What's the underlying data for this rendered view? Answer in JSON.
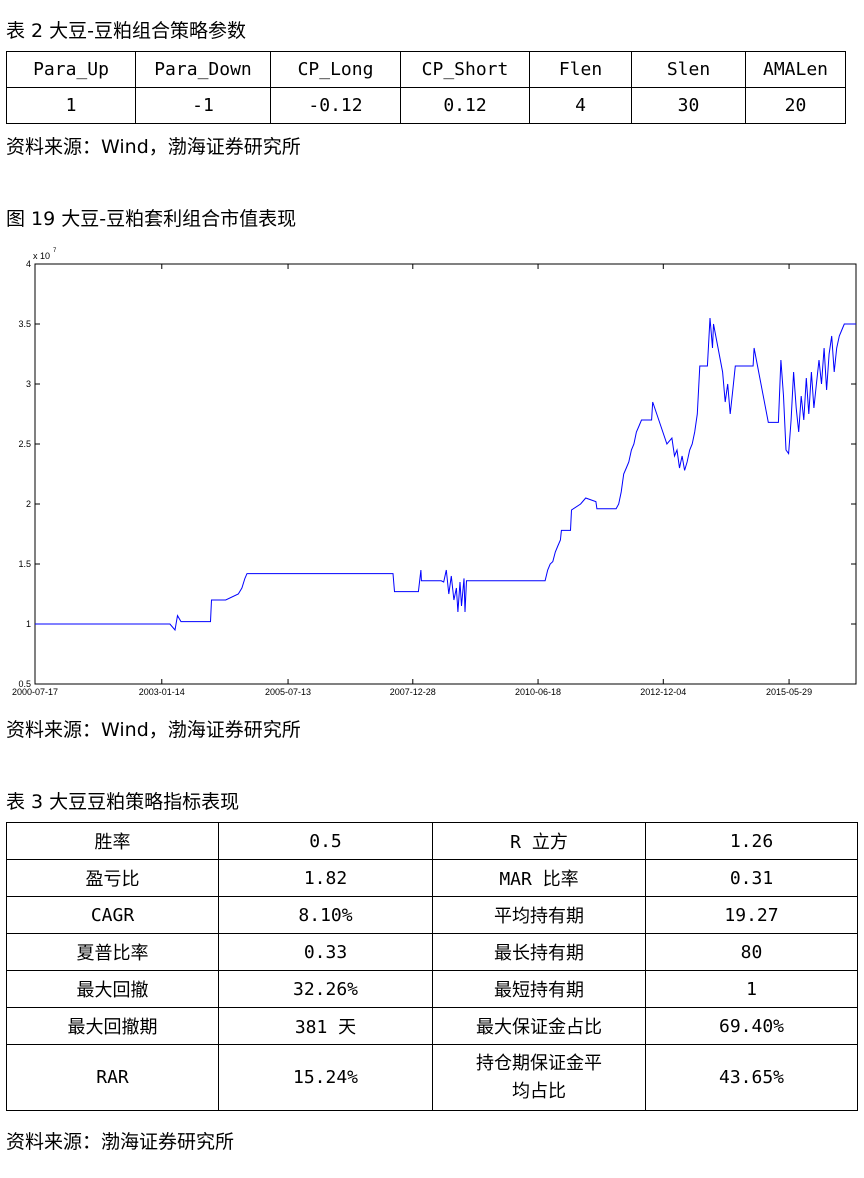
{
  "table2": {
    "caption": "表 2 大豆-豆粕组合策略参数",
    "headers": [
      "Para_Up",
      "Para_Down",
      "CP_Long",
      "CP_Short",
      "Flen",
      "Slen",
      "AMALen"
    ],
    "values": [
      "1",
      "-1",
      "-0.12",
      "0.12",
      "4",
      "30",
      "20"
    ],
    "source": "资料来源：Wind，渤海证券研究所"
  },
  "figure19": {
    "caption": "图 19 大豆-豆粕套利组合市值表现",
    "source": "资料来源：Wind，渤海证券研究所"
  },
  "chart_data": {
    "type": "line",
    "title": "",
    "xlabel": "",
    "ylabel": "",
    "y_scale_label": "x 10",
    "y_scale_exponent": "7",
    "ylim": [
      0.5,
      4
    ],
    "y_ticks": [
      "0.5",
      "1",
      "1.5",
      "2",
      "2.5",
      "3",
      "3.5",
      "4"
    ],
    "x_ticks": [
      "2000-07-17",
      "2003-01-14",
      "2005-07-13",
      "2007-12-28",
      "2010-06-18",
      "2012-12-04",
      "2015-05-29"
    ],
    "x_tick_years": [
      2000.54,
      2003.04,
      2005.53,
      2007.99,
      2010.46,
      2012.93,
      2015.41
    ],
    "xlim": [
      2000.54,
      2016.73
    ],
    "grid": false,
    "line_color": "#0000ff",
    "series": [
      {
        "x": [
          2000.54,
          2002.0,
          2003.2,
          2003.3,
          2003.35,
          2003.42,
          2003.5,
          2004.0,
          2004.02,
          2004.3,
          2004.55,
          2004.62,
          2004.68,
          2004.72,
          2007.0,
          2007.6,
          2007.63,
          2008.1,
          2008.15,
          2008.16,
          2008.3,
          2008.55,
          2008.6,
          2008.65,
          2008.7,
          2008.75,
          2008.8,
          2008.85,
          2008.88,
          2008.92,
          2008.95,
          2009.0,
          2009.02,
          2009.05,
          2009.1,
          2009.15,
          2009.2,
          2009.25,
          2009.3,
          2009.35,
          2009.36,
          2010.6,
          2010.65,
          2010.7,
          2010.75,
          2010.8,
          2010.85,
          2010.9,
          2010.92,
          2011.1,
          2011.12,
          2011.3,
          2011.4,
          2011.6,
          2011.62,
          2011.65,
          2011.7,
          2011.8,
          2012.0,
          2012.05,
          2012.1,
          2012.15,
          2012.2,
          2012.25,
          2012.3,
          2012.35,
          2012.4,
          2012.45,
          2012.5,
          2012.55,
          2012.6,
          2012.65,
          2012.7,
          2012.72,
          2013.0,
          2013.1,
          2013.15,
          2013.2,
          2013.25,
          2013.3,
          2013.35,
          2013.4,
          2013.45,
          2013.5,
          2013.55,
          2013.6,
          2013.65,
          2013.7,
          2013.75,
          2013.8,
          2013.85,
          2013.9,
          2013.92,
          2014.1,
          2014.15,
          2014.2,
          2014.25,
          2014.3,
          2014.35,
          2014.4,
          2014.45,
          2014.5,
          2014.55,
          2014.6,
          2014.65,
          2014.7,
          2014.72,
          2015.0,
          2015.02,
          2015.03,
          2015.2,
          2015.25,
          2015.3,
          2015.35,
          2015.4,
          2015.45,
          2015.5,
          2015.55,
          2015.6,
          2015.65,
          2015.7,
          2015.75,
          2015.8,
          2015.85,
          2015.9,
          2015.95,
          2016.0,
          2016.05,
          2016.1,
          2016.15,
          2016.2,
          2016.25,
          2016.3,
          2016.35,
          2016.4,
          2016.45,
          2016.5,
          2016.55,
          2016.6,
          2016.73
        ],
        "y": [
          1.0,
          1.0,
          1.0,
          0.95,
          1.07,
          1.02,
          1.02,
          1.02,
          1.2,
          1.2,
          1.25,
          1.3,
          1.38,
          1.42,
          1.42,
          1.42,
          1.27,
          1.27,
          1.45,
          1.36,
          1.36,
          1.36,
          1.35,
          1.45,
          1.25,
          1.4,
          1.2,
          1.3,
          1.1,
          1.35,
          1.15,
          1.38,
          1.1,
          1.36,
          1.36,
          1.36,
          1.36,
          1.36,
          1.36,
          1.36,
          1.36,
          1.36,
          1.45,
          1.5,
          1.52,
          1.6,
          1.65,
          1.7,
          1.78,
          1.78,
          1.95,
          2.0,
          2.05,
          2.02,
          1.96,
          1.96,
          1.96,
          1.96,
          1.96,
          2.0,
          2.1,
          2.25,
          2.3,
          2.35,
          2.45,
          2.5,
          2.6,
          2.65,
          2.7,
          2.7,
          2.7,
          2.7,
          2.7,
          2.85,
          2.5,
          2.55,
          2.4,
          2.45,
          2.3,
          2.4,
          2.28,
          2.35,
          2.45,
          2.5,
          2.6,
          2.75,
          3.15,
          3.15,
          3.15,
          3.15,
          3.55,
          3.3,
          3.5,
          3.1,
          2.85,
          3.0,
          2.75,
          2.95,
          3.15,
          3.15,
          3.15,
          3.15,
          3.15,
          3.15,
          3.15,
          3.15,
          3.3,
          2.68,
          2.68,
          2.68,
          2.68,
          3.2,
          2.9,
          2.45,
          2.42,
          2.7,
          3.1,
          2.8,
          2.6,
          2.9,
          2.7,
          3.05,
          2.75,
          3.1,
          2.8,
          3.0,
          3.2,
          3.0,
          3.3,
          2.95,
          3.25,
          3.4,
          3.1,
          3.3,
          3.4,
          3.45,
          3.5,
          3.5,
          3.5,
          3.5
        ]
      }
    ]
  },
  "table3": {
    "caption": "表 3 大豆豆粕策略指标表现",
    "rows": [
      [
        "胜率",
        "0.5",
        "R 立方",
        "1.26"
      ],
      [
        "盈亏比",
        "1.82",
        "MAR 比率",
        "0.31"
      ],
      [
        "CAGR",
        "8.10%",
        "平均持有期",
        "19.27"
      ],
      [
        "夏普比率",
        "0.33",
        "最长持有期",
        "80"
      ],
      [
        "最大回撤",
        "32.26%",
        "最短持有期",
        "1"
      ],
      [
        "最大回撤期",
        "381 天",
        "最大保证金占比",
        "69.40%"
      ],
      [
        "RAR",
        "15.24%",
        "持仓期保证金平均占比",
        "43.65%"
      ]
    ],
    "source": "资料来源：渤海证券研究所"
  }
}
